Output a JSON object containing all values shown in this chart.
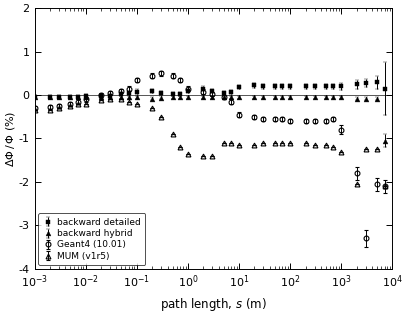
{
  "title": "",
  "xlabel": "path length, $s$ (m)",
  "ylabel": "$\\Delta\\Phi\\,/\\,\\Phi$ (%)",
  "xlim": [
    0.001,
    10000.0
  ],
  "ylim": [
    -4,
    2
  ],
  "yticks": [
    -4,
    -3,
    -2,
    -1,
    0,
    1,
    2
  ],
  "backward_detailed": {
    "label": "backward detailed",
    "marker": "s",
    "color": "#000000",
    "markersize": 2.5,
    "x": [
      0.001,
      0.002,
      0.003,
      0.005,
      0.007,
      0.01,
      0.02,
      0.03,
      0.05,
      0.07,
      0.1,
      0.2,
      0.3,
      0.5,
      0.7,
      1,
      2,
      3,
      5,
      7,
      10,
      20,
      30,
      50,
      70,
      100,
      200,
      300,
      500,
      700,
      1000,
      2000,
      3000,
      5000,
      7000
    ],
    "y": [
      -0.05,
      -0.05,
      -0.05,
      -0.05,
      -0.05,
      -0.03,
      -0.02,
      -0.02,
      0.02,
      0.05,
      0.08,
      0.1,
      0.05,
      0.02,
      0.02,
      0.1,
      0.15,
      0.1,
      0.05,
      0.07,
      0.18,
      0.22,
      0.2,
      0.2,
      0.2,
      0.2,
      0.2,
      0.2,
      0.2,
      0.2,
      0.2,
      0.25,
      0.28,
      0.3,
      0.15
    ],
    "yerr": [
      0.05,
      0.05,
      0.05,
      0.05,
      0.05,
      0.05,
      0.05,
      0.05,
      0.05,
      0.05,
      0.05,
      0.05,
      0.05,
      0.05,
      0.05,
      0.05,
      0.05,
      0.05,
      0.05,
      0.05,
      0.05,
      0.05,
      0.05,
      0.05,
      0.05,
      0.05,
      0.05,
      0.05,
      0.05,
      0.05,
      0.08,
      0.1,
      0.1,
      0.15,
      0.6
    ]
  },
  "backward_hybrid": {
    "label": "backward hybrid",
    "marker": "^",
    "color": "#000000",
    "markersize": 3.5,
    "x": [
      0.001,
      0.002,
      0.003,
      0.005,
      0.007,
      0.01,
      0.02,
      0.03,
      0.05,
      0.07,
      0.1,
      0.2,
      0.3,
      0.5,
      0.7,
      1,
      2,
      3,
      5,
      7,
      10,
      20,
      30,
      50,
      70,
      100,
      200,
      300,
      500,
      700,
      1000,
      2000,
      3000,
      5000,
      7000
    ],
    "y": [
      -0.05,
      -0.05,
      -0.05,
      -0.05,
      -0.05,
      -0.05,
      -0.05,
      -0.05,
      -0.05,
      -0.05,
      -0.05,
      -0.08,
      -0.06,
      -0.05,
      -0.05,
      -0.05,
      -0.05,
      -0.05,
      -0.05,
      -0.05,
      -0.05,
      -0.05,
      -0.05,
      -0.05,
      -0.05,
      -0.05,
      -0.05,
      -0.05,
      -0.05,
      -0.05,
      -0.05,
      -0.08,
      -0.08,
      -0.08,
      -1.05
    ],
    "yerr": [
      0.03,
      0.03,
      0.03,
      0.03,
      0.03,
      0.03,
      0.03,
      0.03,
      0.03,
      0.03,
      0.03,
      0.03,
      0.03,
      0.03,
      0.03,
      0.03,
      0.03,
      0.03,
      0.03,
      0.03,
      0.03,
      0.03,
      0.03,
      0.03,
      0.03,
      0.03,
      0.03,
      0.03,
      0.03,
      0.03,
      0.03,
      0.03,
      0.03,
      0.03,
      0.15
    ]
  },
  "geant4": {
    "label": "Geant4 (10.01)",
    "marker": "o",
    "color": "#000000",
    "markersize": 3.5,
    "x": [
      0.001,
      0.002,
      0.003,
      0.005,
      0.007,
      0.01,
      0.02,
      0.03,
      0.05,
      0.07,
      0.1,
      0.2,
      0.3,
      0.5,
      0.7,
      1,
      2,
      3,
      5,
      7,
      10,
      20,
      30,
      50,
      70,
      100,
      200,
      300,
      500,
      700,
      1000,
      2000,
      3000,
      5000,
      7000
    ],
    "y": [
      -0.3,
      -0.28,
      -0.25,
      -0.2,
      -0.15,
      -0.1,
      0.0,
      0.05,
      0.1,
      0.15,
      0.35,
      0.45,
      0.5,
      0.45,
      0.35,
      0.15,
      0.08,
      0.03,
      -0.05,
      -0.15,
      -0.45,
      -0.5,
      -0.55,
      -0.55,
      -0.55,
      -0.6,
      -0.6,
      -0.6,
      -0.6,
      -0.55,
      -0.8,
      -1.8,
      -3.3,
      -2.05,
      -2.1
    ],
    "yerr": [
      0.05,
      0.05,
      0.05,
      0.05,
      0.05,
      0.05,
      0.05,
      0.05,
      0.05,
      0.05,
      0.05,
      0.05,
      0.05,
      0.05,
      0.05,
      0.05,
      0.05,
      0.05,
      0.05,
      0.05,
      0.05,
      0.05,
      0.05,
      0.05,
      0.05,
      0.05,
      0.05,
      0.05,
      0.05,
      0.05,
      0.1,
      0.15,
      0.2,
      0.15,
      0.15
    ]
  },
  "mum": {
    "label": "MUM (v1r5)",
    "marker": "^",
    "color": "#000000",
    "markersize": 3.5,
    "x": [
      0.001,
      0.002,
      0.003,
      0.005,
      0.007,
      0.01,
      0.02,
      0.03,
      0.05,
      0.07,
      0.1,
      0.2,
      0.3,
      0.5,
      0.7,
      1,
      2,
      3,
      5,
      7,
      10,
      20,
      30,
      50,
      70,
      100,
      200,
      300,
      500,
      700,
      1000,
      2000,
      3000,
      5000,
      7000
    ],
    "y": [
      -0.35,
      -0.35,
      -0.3,
      -0.25,
      -0.2,
      -0.2,
      -0.12,
      -0.1,
      -0.1,
      -0.15,
      -0.2,
      -0.3,
      -0.5,
      -0.9,
      -1.2,
      -1.35,
      -1.4,
      -1.4,
      -1.1,
      -1.1,
      -1.15,
      -1.15,
      -1.1,
      -1.1,
      -1.1,
      -1.1,
      -1.1,
      -1.15,
      -1.15,
      -1.2,
      -1.3,
      -2.05,
      -1.25,
      -1.25,
      -2.1
    ],
    "yerr": [
      0.0,
      0.0,
      0.0,
      0.0,
      0.0,
      0.0,
      0.0,
      0.0,
      0.0,
      0.0,
      0.0,
      0.0,
      0.0,
      0.0,
      0.0,
      0.0,
      0.0,
      0.0,
      0.0,
      0.0,
      0.0,
      0.0,
      0.0,
      0.0,
      0.0,
      0.0,
      0.0,
      0.0,
      0.0,
      0.0,
      0.0,
      0.0,
      0.0,
      0.0,
      0.0
    ]
  }
}
